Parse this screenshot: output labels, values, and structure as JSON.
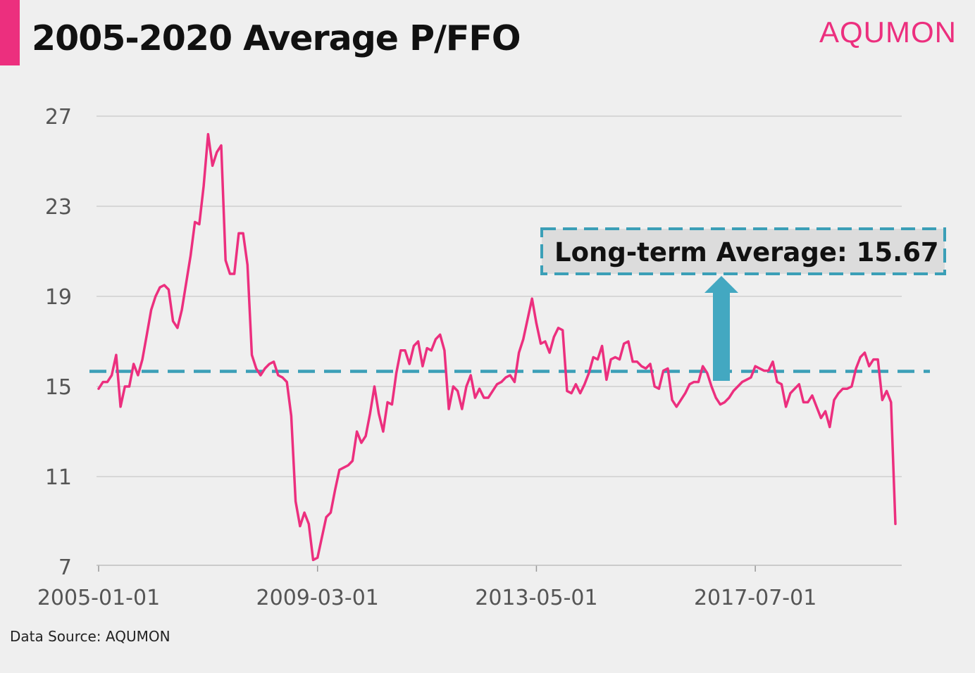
{
  "header": {
    "title": "2005-2020 Average P/FFO",
    "brand": "AQUMON"
  },
  "footer": {
    "source": "Data Source: AQUMON"
  },
  "colors": {
    "accent": "#ec2f7e",
    "average_line": "#3b9fb7",
    "arrow": "#43a8c1",
    "grid": "#cfcfcf"
  },
  "chart_data": {
    "type": "line",
    "title": "2005-2020 Average P/FFO",
    "xlabel": "",
    "ylabel": "",
    "x_ticks": [
      "2005-01-01",
      "2009-03-01",
      "2013-05-01",
      "2017-07-01"
    ],
    "y_ticks": [
      7,
      11,
      15,
      19,
      23,
      27
    ],
    "ylim": [
      7,
      27
    ],
    "grid": "horizontal",
    "series": [
      {
        "values": [
          14.9,
          15.2,
          15.2,
          15.5,
          16.4,
          14.1,
          15.0,
          15.0,
          16.0,
          15.5,
          16.2,
          17.3,
          18.4,
          19.0,
          19.4,
          19.5,
          19.3,
          17.9,
          17.6,
          18.4,
          19.6,
          20.8,
          22.3,
          22.2,
          23.9,
          26.2,
          24.8,
          25.4,
          25.7,
          20.6,
          20.0,
          20.0,
          21.8,
          21.8,
          20.4,
          16.4,
          15.8,
          15.5,
          15.8,
          16.0,
          16.1,
          15.5,
          15.4,
          15.2,
          13.7,
          9.9,
          8.8,
          9.4,
          8.9,
          7.3,
          7.4,
          8.3,
          9.2,
          9.4,
          10.4,
          11.3,
          11.4,
          11.5,
          11.7,
          13.0,
          12.5,
          12.8,
          13.8,
          15.0,
          13.8,
          13.0,
          14.3,
          14.2,
          15.6,
          16.6,
          16.6,
          16.0,
          16.8,
          17.0,
          15.9,
          16.7,
          16.6,
          17.1,
          17.3,
          16.6,
          14.0,
          15.0,
          14.8,
          14.0,
          15.0,
          15.5,
          14.5,
          14.9,
          14.5,
          14.5,
          14.8,
          15.1,
          15.2,
          15.4,
          15.5,
          15.2,
          16.5,
          17.1,
          18.0,
          18.9,
          17.8,
          16.9,
          17.0,
          16.5,
          17.2,
          17.6,
          17.5,
          14.8,
          14.7,
          15.1,
          14.7,
          15.1,
          15.6,
          16.3,
          16.2,
          16.8,
          15.3,
          16.2,
          16.3,
          16.2,
          16.9,
          17.0,
          16.1,
          16.1,
          15.9,
          15.8,
          16.0,
          15.0,
          14.9,
          15.7,
          15.8,
          14.4,
          14.1,
          14.4,
          14.7,
          15.1,
          15.2,
          15.2,
          15.9,
          15.6,
          15.0,
          14.5,
          14.2,
          14.3,
          14.5,
          14.8,
          15.0,
          15.2,
          15.3,
          15.4,
          15.9,
          15.8,
          15.7,
          15.7,
          16.1,
          15.2,
          15.1,
          14.1,
          14.7,
          14.9,
          15.1,
          14.3,
          14.3,
          14.6,
          14.1,
          13.6,
          13.9,
          13.2,
          14.4,
          14.7,
          14.9,
          14.9,
          15.0,
          15.8,
          16.3,
          16.5,
          15.9,
          16.2,
          16.2,
          14.4,
          14.8,
          14.3,
          8.9
        ]
      }
    ],
    "annotations": [
      {
        "label": "Long-term Average: 15.67",
        "value": 15.67,
        "style": "dashed horizontal line"
      }
    ]
  }
}
